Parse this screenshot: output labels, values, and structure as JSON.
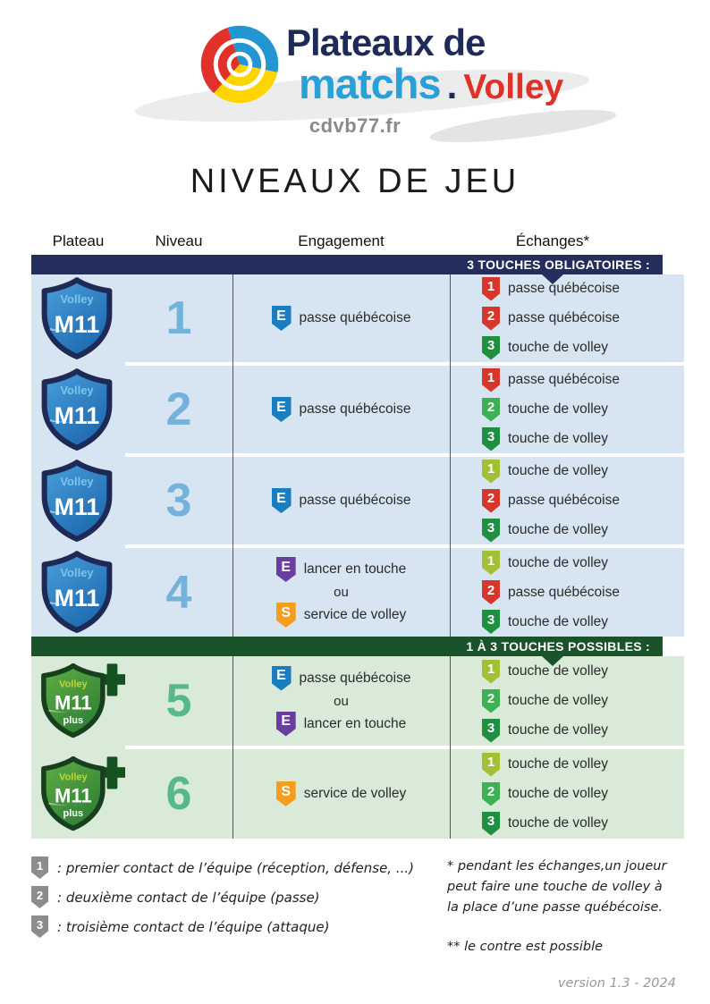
{
  "logo": {
    "title_line1": "Plateaux de",
    "title_word": "matchs",
    "title_dot": ".",
    "title_suffix": "Volley",
    "website": "cdvb77.fr"
  },
  "page_title": "NIVEAUX DE JEU",
  "table": {
    "headers": {
      "plateau": "Plateau",
      "niveau": "Niveau",
      "engagement": "Engagement",
      "echanges": "Échanges*"
    },
    "banners": [
      {
        "label": "3 TOUCHES OBLIGATOIRES :",
        "color": "#242e5c"
      },
      {
        "label": "1 À 3 TOUCHES POSSIBLES :",
        "color": "#1a5329"
      }
    ],
    "rows": [
      {
        "plateau": {
          "variant": "m11",
          "top_label": "Volley",
          "main_label": "M11"
        },
        "niveau": "1",
        "engagement": {
          "items": [
            {
              "letter": "E",
              "color": "#1a7dc0",
              "text": "passe québécoise"
            }
          ]
        },
        "echanges": {
          "items": [
            {
              "num": "1",
              "color": "#d6362b",
              "text": "passe québécoise"
            },
            {
              "num": "2",
              "color": "#d6362b",
              "text": "passe québécoise"
            },
            {
              "num": "3",
              "color": "#1f9040",
              "text": "touche de volley"
            }
          ]
        }
      },
      {
        "plateau": {
          "variant": "m11",
          "top_label": "Volley",
          "main_label": "M11"
        },
        "niveau": "2",
        "engagement": {
          "items": [
            {
              "letter": "E",
              "color": "#1a7dc0",
              "text": "passe québécoise"
            }
          ]
        },
        "echanges": {
          "items": [
            {
              "num": "1",
              "color": "#d6362b",
              "text": "passe québécoise"
            },
            {
              "num": "2",
              "color": "#3cb053",
              "text": "touche de volley"
            },
            {
              "num": "3",
              "color": "#1f9040",
              "text": "touche de volley"
            }
          ]
        }
      },
      {
        "plateau": {
          "variant": "m11",
          "top_label": "Volley",
          "main_label": "M11"
        },
        "niveau": "3",
        "engagement": {
          "items": [
            {
              "letter": "E",
              "color": "#1a7dc0",
              "text": "passe québécoise"
            }
          ]
        },
        "echanges": {
          "items": [
            {
              "num": "1",
              "color": "#a3bf33",
              "text": "touche de volley"
            },
            {
              "num": "2",
              "color": "#d6362b",
              "text": "passe québécoise"
            },
            {
              "num": "3",
              "color": "#1f9040",
              "text": "touche de volley"
            }
          ]
        }
      },
      {
        "plateau": {
          "variant": "m11",
          "top_label": "Volley",
          "main_label": "M11"
        },
        "niveau": "4",
        "engagement": {
          "separator": "ou",
          "items": [
            {
              "letter": "E",
              "color": "#6a3da0",
              "text": "lancer en touche"
            },
            {
              "letter": "S",
              "color": "#f49d1e",
              "text": "service de volley"
            }
          ]
        },
        "echanges": {
          "items": [
            {
              "num": "1",
              "color": "#a3bf33",
              "text": "touche de volley"
            },
            {
              "num": "2",
              "color": "#d6362b",
              "text": "passe québécoise"
            },
            {
              "num": "3",
              "color": "#1f9040",
              "text": "touche de volley"
            }
          ]
        }
      },
      {
        "plateau": {
          "variant": "m11plus",
          "top_label": "Volley",
          "main_label": "M11",
          "sub_label": "plus"
        },
        "niveau": "5",
        "engagement": {
          "separator": "ou",
          "items": [
            {
              "letter": "E",
              "color": "#1a7dc0",
              "text": "passe québécoise"
            },
            {
              "letter": "E",
              "color": "#6a3da0",
              "text": "lancer en touche"
            }
          ]
        },
        "echanges": {
          "items": [
            {
              "num": "1",
              "color": "#a3bf33",
              "text": "touche de volley"
            },
            {
              "num": "2",
              "color": "#3cb053",
              "text": "touche de volley"
            },
            {
              "num": "3",
              "color": "#1f9040",
              "text": "touche de volley"
            }
          ]
        }
      },
      {
        "plateau": {
          "variant": "m11plus",
          "top_label": "Volley",
          "main_label": "M11",
          "sub_label": "plus"
        },
        "niveau": "6",
        "engagement": {
          "items": [
            {
              "letter": "S",
              "color": "#f49d1e",
              "text": "service de volley"
            }
          ]
        },
        "echanges": {
          "items": [
            {
              "num": "1",
              "color": "#a3bf33",
              "text": "touche de volley"
            },
            {
              "num": "2",
              "color": "#3cb053",
              "text": "touche de volley"
            },
            {
              "num": "3",
              "color": "#1f9040",
              "text": "touche de volley"
            }
          ]
        }
      }
    ]
  },
  "legend": {
    "items": [
      {
        "num": "1",
        "text": ": premier contact de l’équipe (réception, défense, ...)"
      },
      {
        "num": "2",
        "text": ": deuxième contact de l’équipe (passe)"
      },
      {
        "num": "3",
        "text": ": troisième contact de l’équipe (attaque)"
      }
    ]
  },
  "notes": {
    "note1": "* pendant les échanges,un joueur peut faire une touche de volley à la place d’une passe québécoise.",
    "note2": "** le contre est possible"
  },
  "footer": {
    "version": "version 1.3 - 2024"
  },
  "colors": {
    "banner_navy": "#242e5c",
    "banner_green": "#1a5329",
    "section_blue": "#d6e5f1",
    "section_green": "#d9ead9",
    "niveau_blue": "#74b2dc",
    "niveau_green": "#57b889",
    "legend_badge": "#8c8c8c",
    "logo_navy": "#1d2b5a",
    "logo_blue": "#2aa0d8",
    "logo_red": "#e03127",
    "website_gray": "#8a8a8a"
  }
}
